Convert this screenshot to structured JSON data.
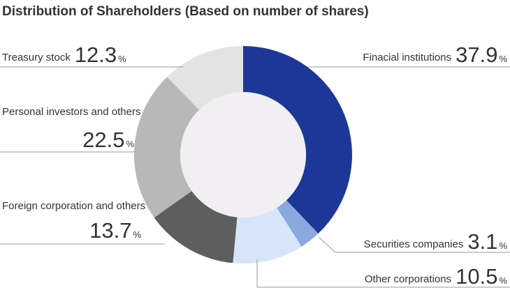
{
  "chart_data": {
    "type": "pie",
    "style": "donut",
    "title": "Distribution of Shareholders (Based on number of shares)",
    "unit": "%",
    "slices": [
      {
        "label": "Finacial institutions",
        "value": 37.9,
        "display": "37.9",
        "color": "#1c3797"
      },
      {
        "label": "Securities companies",
        "value": 3.1,
        "display": "3.1",
        "color": "#8aa9de"
      },
      {
        "label": "Other corporations",
        "value": 10.5,
        "display": "10.5",
        "color": "#d8e4f8"
      },
      {
        "label": "Foreign corporation and others",
        "value": 13.7,
        "display": "13.7",
        "color": "#5e5e5e"
      },
      {
        "label": "Personal investors and others",
        "value": 22.5,
        "display": "22.5",
        "color": "#b8b8b8"
      },
      {
        "label": "Treasury stock",
        "value": 12.3,
        "display": "12.3",
        "color": "#e3e3e3"
      }
    ],
    "center_color": "#f1eff1"
  }
}
